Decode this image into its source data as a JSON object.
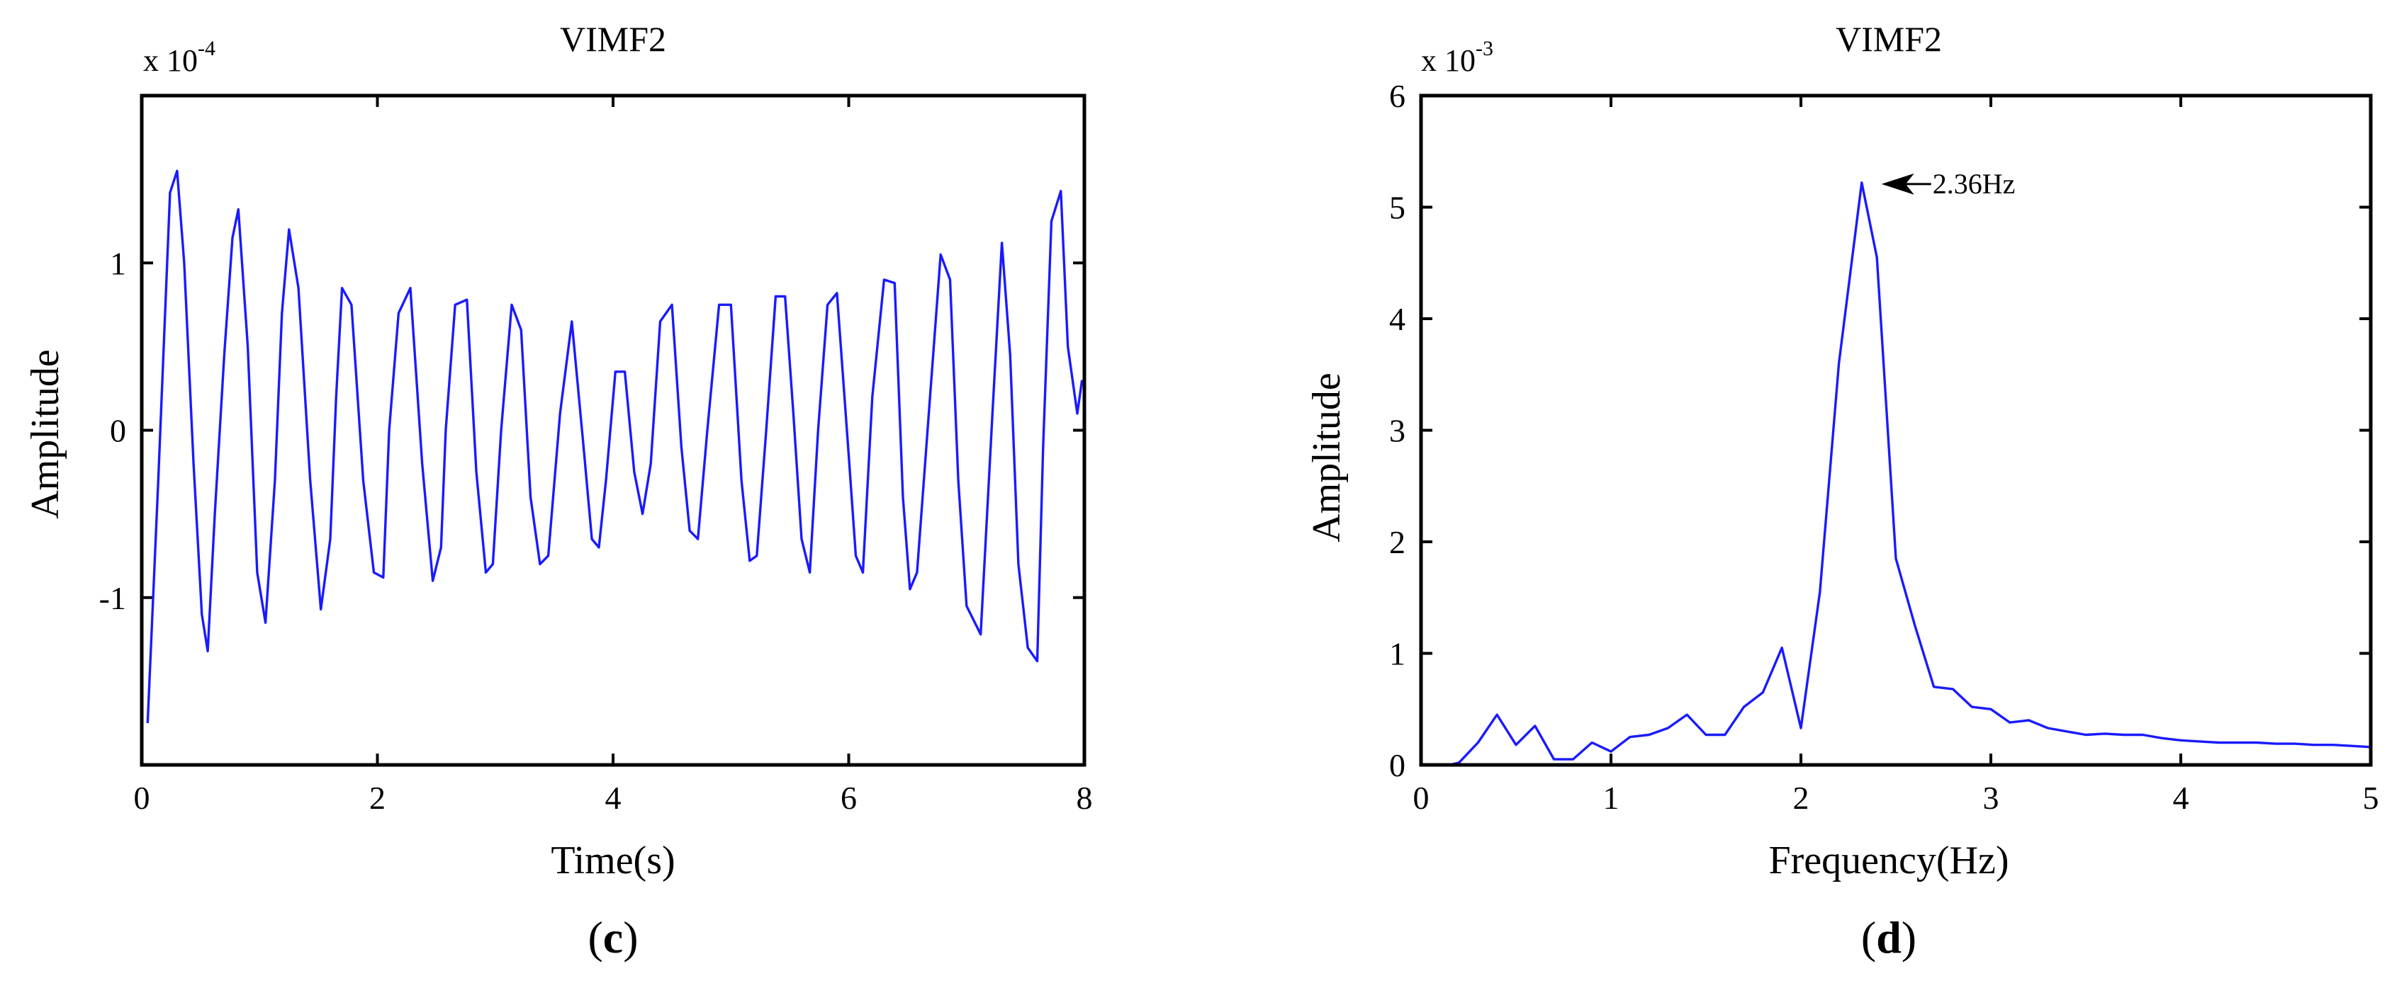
{
  "chart_data": [
    {
      "type": "line",
      "panel_label": "c",
      "title": "VIMF2",
      "xlabel": "Time(s)",
      "ylabel": "Amplitude",
      "y_exponent": "x 10",
      "y_exponent_power": "-4",
      "xlim": [
        0,
        8
      ],
      "ylim": [
        -2,
        2
      ],
      "xticks": [
        0,
        2,
        4,
        6,
        8
      ],
      "yticks": [
        -1,
        0,
        1
      ],
      "grid": false,
      "color": "#1a1aff",
      "series": [
        {
          "x": [
            0.05,
            0.14,
            0.24,
            0.3,
            0.36,
            0.44,
            0.51,
            0.56,
            0.62,
            0.7,
            0.77,
            0.82,
            0.9,
            0.98,
            1.05,
            1.13,
            1.19,
            1.25,
            1.33,
            1.43,
            1.52,
            1.6,
            1.65,
            1.7,
            1.78,
            1.88,
            1.97,
            2.05,
            2.1,
            2.18,
            2.28,
            2.38,
            2.47,
            2.54,
            2.58,
            2.66,
            2.76,
            2.84,
            2.92,
            2.98,
            3.05,
            3.14,
            3.22,
            3.3,
            3.38,
            3.45,
            3.55,
            3.65,
            3.75,
            3.82,
            3.88,
            3.94,
            4.02,
            4.1,
            4.18,
            4.25,
            4.32,
            4.4,
            4.5,
            4.58,
            4.65,
            4.72,
            4.8,
            4.9,
            5.0,
            5.09,
            5.16,
            5.22,
            5.3,
            5.38,
            5.46,
            5.53,
            5.6,
            5.67,
            5.74,
            5.82,
            5.9,
            6.0,
            6.06,
            6.12,
            6.2,
            6.3,
            6.39,
            6.46,
            6.52,
            6.58,
            6.68,
            6.78,
            6.86,
            6.93,
            7.0,
            7.12,
            7.22,
            7.3,
            7.37,
            7.44,
            7.52,
            7.6,
            7.65,
            7.72,
            7.8,
            7.86,
            7.94,
            7.98
          ],
          "y": [
            -1.75,
            -0.3,
            1.42,
            1.55,
            1.0,
            -0.2,
            -1.1,
            -1.32,
            -0.5,
            0.45,
            1.15,
            1.32,
            0.5,
            -0.85,
            -1.15,
            -0.3,
            0.7,
            1.2,
            0.85,
            -0.3,
            -1.07,
            -0.65,
            0.2,
            0.85,
            0.75,
            -0.3,
            -0.85,
            -0.88,
            0.0,
            0.7,
            0.85,
            -0.2,
            -0.9,
            -0.7,
            0.0,
            0.75,
            0.78,
            -0.25,
            -0.85,
            -0.8,
            0.0,
            0.75,
            0.6,
            -0.4,
            -0.8,
            -0.75,
            0.1,
            0.65,
            -0.1,
            -0.65,
            -0.7,
            -0.3,
            0.35,
            0.35,
            -0.25,
            -0.5,
            -0.2,
            0.65,
            0.75,
            -0.1,
            -0.6,
            -0.65,
            0.0,
            0.75,
            0.75,
            -0.3,
            -0.78,
            -0.75,
            0.0,
            0.8,
            0.8,
            0.1,
            -0.65,
            -0.85,
            0.0,
            0.75,
            0.82,
            -0.15,
            -0.75,
            -0.85,
            0.2,
            0.9,
            0.88,
            -0.4,
            -0.95,
            -0.85,
            0.1,
            1.05,
            0.9,
            -0.3,
            -1.05,
            -1.22,
            0.1,
            1.12,
            0.45,
            -0.8,
            -1.3,
            -1.38,
            -0.1,
            1.25,
            1.43,
            0.5,
            0.1,
            0.3
          ]
        }
      ]
    },
    {
      "type": "line",
      "panel_label": "d",
      "title": "VIMF2",
      "xlabel": "Frequency(Hz)",
      "ylabel": "Amplitude",
      "y_exponent": "x 10",
      "y_exponent_power": "-3",
      "xlim": [
        0,
        5
      ],
      "ylim": [
        0,
        6
      ],
      "xticks": [
        0,
        1,
        2,
        3,
        4,
        5
      ],
      "yticks": [
        0,
        1,
        2,
        3,
        4,
        5,
        6
      ],
      "grid": false,
      "color": "#1a1aff",
      "annotation": {
        "text": "2.36Hz",
        "x": 2.32,
        "y": 5.22
      },
      "series": [
        {
          "x": [
            0.15,
            0.2,
            0.3,
            0.4,
            0.5,
            0.6,
            0.7,
            0.8,
            0.9,
            1.0,
            1.1,
            1.2,
            1.3,
            1.4,
            1.5,
            1.6,
            1.7,
            1.8,
            1.9,
            2.0,
            2.1,
            2.2,
            2.32,
            2.4,
            2.5,
            2.6,
            2.7,
            2.8,
            2.9,
            3.0,
            3.1,
            3.2,
            3.3,
            3.4,
            3.5,
            3.6,
            3.7,
            3.8,
            3.9,
            4.0,
            4.1,
            4.2,
            4.3,
            4.4,
            4.5,
            4.6,
            4.7,
            4.8,
            4.9,
            5.0
          ],
          "y": [
            0.0,
            0.02,
            0.2,
            0.45,
            0.18,
            0.35,
            0.05,
            0.05,
            0.2,
            0.12,
            0.25,
            0.27,
            0.33,
            0.45,
            0.27,
            0.27,
            0.52,
            0.65,
            1.05,
            0.33,
            1.55,
            3.6,
            5.22,
            4.55,
            1.85,
            1.25,
            0.7,
            0.68,
            0.52,
            0.5,
            0.38,
            0.4,
            0.33,
            0.3,
            0.27,
            0.28,
            0.27,
            0.27,
            0.24,
            0.22,
            0.21,
            0.2,
            0.2,
            0.2,
            0.19,
            0.19,
            0.18,
            0.18,
            0.17,
            0.16
          ]
        }
      ]
    }
  ]
}
